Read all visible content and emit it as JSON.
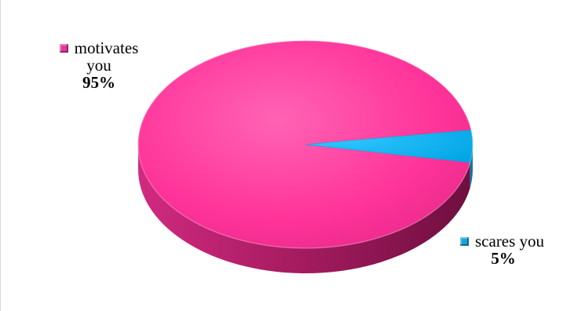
{
  "chart_data": {
    "type": "pie",
    "title": "",
    "slices": [
      {
        "label": "motivates you",
        "label_lines": [
          "motivates",
          "you"
        ],
        "percent_label": "95%",
        "value": 95,
        "color": "#ff3399",
        "side_color": "#b0206a"
      },
      {
        "label": "scares you",
        "label_lines": [
          "scares you"
        ],
        "percent_label": "5%",
        "value": 5,
        "color": "#00b0f0",
        "side_color": "#0a7aa8"
      }
    ],
    "style": "3d",
    "legend": "none"
  }
}
